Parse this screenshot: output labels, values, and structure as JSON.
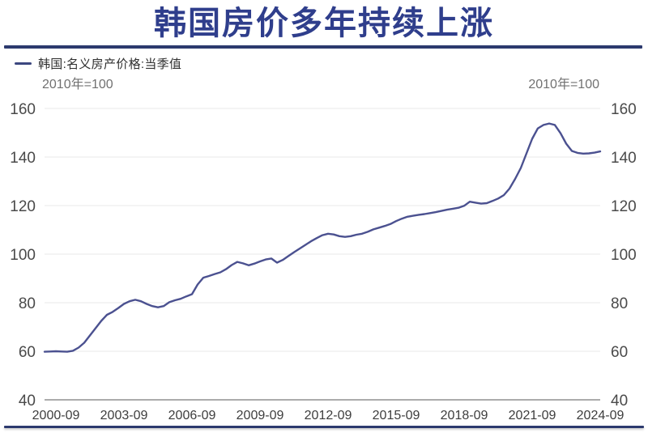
{
  "header": {
    "title": "韩国房价多年持续上涨"
  },
  "legend": {
    "label": "韩国:名义房产价格:当季值"
  },
  "units": {
    "left": "2010年=100",
    "right": "2010年=100"
  },
  "colors": {
    "title": "#2f3e8c",
    "divider": "#2c3a6e",
    "line": "#4b5190",
    "gridline": "#ededed",
    "axis_line": "#8f8f8f",
    "y_label": "#4a4a4a",
    "x_label": "#3d3d3d"
  },
  "chart_data": {
    "type": "line",
    "title": "韩国房价多年持续上涨",
    "series_name": "韩国:名义房产价格:当季值",
    "index_note": "2010年=100",
    "frequency": "quarterly",
    "x_start": "2000-03",
    "x_end": "2024-09",
    "ylim": [
      40,
      160
    ],
    "y_ticks": [
      160,
      140,
      120,
      100,
      80,
      60,
      40
    ],
    "y_axis_sides": [
      "left",
      "right"
    ],
    "grid": "horizontal",
    "legend_position": "top-left",
    "x_tick_labels": [
      "2000-09",
      "2003-09",
      "2006-09",
      "2009-09",
      "2012-09",
      "2015-09",
      "2018-09",
      "2021-09",
      "2024-09"
    ],
    "x_tick_indices": [
      2,
      14,
      26,
      38,
      50,
      62,
      74,
      86,
      98
    ],
    "values": [
      59.8,
      59.9,
      60.0,
      59.9,
      59.8,
      60.2,
      61.5,
      63.5,
      66.5,
      69.5,
      72.5,
      75.0,
      76.2,
      77.8,
      79.5,
      80.6,
      81.2,
      80.6,
      79.5,
      78.6,
      78.1,
      78.6,
      80.2,
      81.0,
      81.6,
      82.6,
      83.5,
      87.5,
      90.3,
      91.0,
      91.8,
      92.5,
      93.8,
      95.5,
      96.8,
      96.2,
      95.4,
      96.1,
      97.0,
      97.8,
      98.2,
      96.5,
      97.6,
      99.2,
      100.8,
      102.3,
      103.8,
      105.3,
      106.6,
      107.8,
      108.4,
      108.1,
      107.4,
      107.1,
      107.4,
      108.0,
      108.4,
      109.2,
      110.2,
      110.9,
      111.6,
      112.4,
      113.6,
      114.6,
      115.4,
      115.8,
      116.2,
      116.5,
      116.9,
      117.3,
      117.8,
      118.3,
      118.7,
      119.1,
      119.9,
      121.6,
      121.2,
      120.8,
      121.0,
      121.9,
      122.9,
      124.3,
      127.0,
      131.0,
      135.5,
      141.5,
      147.5,
      151.8,
      153.2,
      153.8,
      153.2,
      149.8,
      145.5,
      142.5,
      141.7,
      141.4,
      141.5,
      141.8,
      142.3
    ]
  }
}
